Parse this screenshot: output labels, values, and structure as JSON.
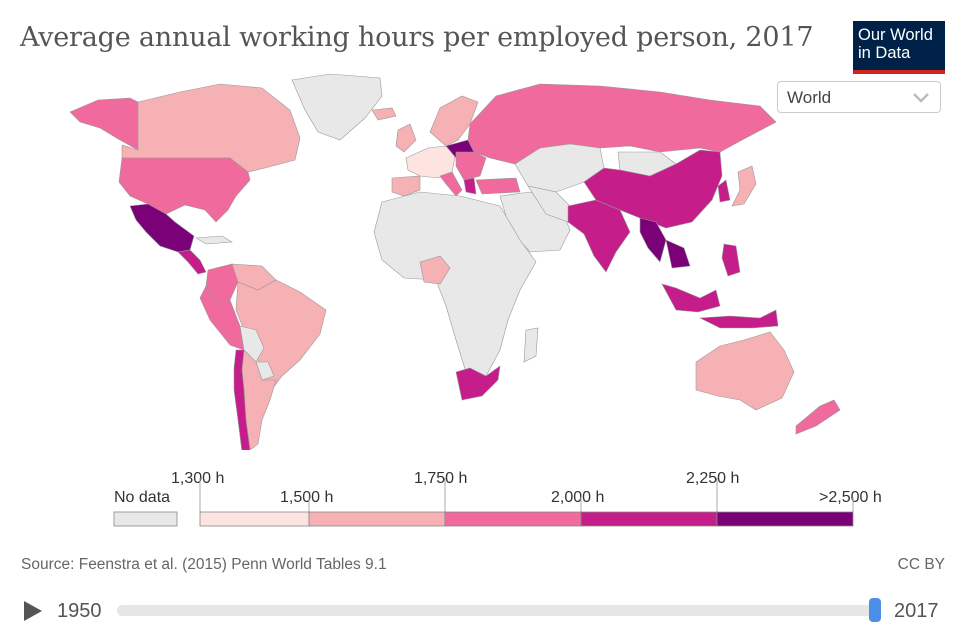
{
  "header": {
    "title": "Average annual working hours per employed person, 2017",
    "logo_line1": "Our World",
    "logo_line2": "in Data"
  },
  "region_selector": {
    "value": "World"
  },
  "legend": {
    "no_data_label": "No data",
    "thresholds": [
      "1,300 h",
      "1,500 h",
      "1,750 h",
      "2,000 h",
      "2,250 h",
      ">2,500 h"
    ],
    "colors": {
      "no_data": "#e8e8e8",
      "bin1": "#fde4e0",
      "bin2": "#f6b1b5",
      "bin3": "#f06a9d",
      "bin4": "#c51d8a",
      "bin5": "#7a0177",
      "border": "#888888"
    }
  },
  "footer": {
    "source": "Source: Feenstra et al. (2015) Penn World Tables 9.1",
    "license": "CC BY"
  },
  "timeline": {
    "start_year": "1950",
    "end_year": "2017"
  }
}
